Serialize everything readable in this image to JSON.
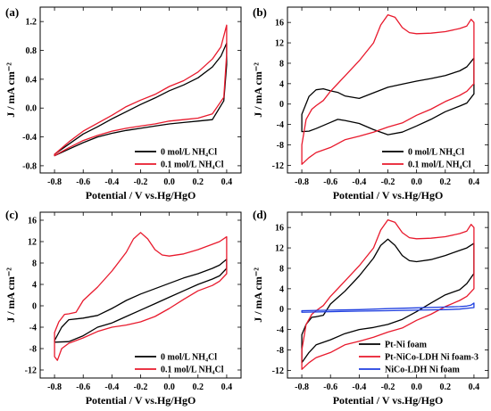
{
  "colors": {
    "black": "#000000",
    "red": "#e8192c",
    "blue": "#1f3fe0"
  },
  "chart_data": [
    {
      "panel": "(a)",
      "type": "line",
      "xlabel": "Potential / V vs.Hg/HgO",
      "ylabel": "J / mA cm⁻²",
      "xlim": [
        -0.9,
        0.5
      ],
      "ylim": [
        -0.9,
        1.4
      ],
      "xticks": [
        "-0.8",
        "-0.6",
        "-0.4",
        "-0.2",
        "0.0",
        "0.2",
        "0.4"
      ],
      "yticks": [
        "-0.8",
        "-0.4",
        "0.0",
        "0.4",
        "0.8",
        "1.2"
      ],
      "legend_position": "bottom-right",
      "series": [
        {
          "name": "0 mol/L NH₄Cl",
          "color": "black",
          "x": [
            -0.8,
            -0.7,
            -0.6,
            -0.5,
            -0.4,
            -0.3,
            -0.2,
            -0.1,
            0.0,
            0.1,
            0.2,
            0.3,
            0.36,
            0.4,
            0.4,
            0.38,
            0.3,
            0.2,
            0.1,
            0.0,
            -0.1,
            -0.2,
            -0.3,
            -0.4,
            -0.5,
            -0.6,
            -0.7,
            -0.8
          ],
          "y": [
            -0.64,
            -0.5,
            -0.36,
            -0.26,
            -0.15,
            -0.05,
            0.05,
            0.14,
            0.24,
            0.32,
            0.42,
            0.57,
            0.72,
            0.9,
            0.6,
            0.1,
            -0.16,
            -0.18,
            -0.2,
            -0.22,
            -0.25,
            -0.28,
            -0.31,
            -0.35,
            -0.4,
            -0.48,
            -0.57,
            -0.66
          ]
        },
        {
          "name": "0.1 mol/L NH₄Cl",
          "color": "red",
          "x": [
            -0.8,
            -0.7,
            -0.6,
            -0.5,
            -0.4,
            -0.3,
            -0.2,
            -0.1,
            0.0,
            0.1,
            0.2,
            0.3,
            0.36,
            0.4,
            0.4,
            0.38,
            0.3,
            0.2,
            0.1,
            0.0,
            -0.1,
            -0.2,
            -0.3,
            -0.4,
            -0.5,
            -0.6,
            -0.7,
            -0.8
          ],
          "y": [
            -0.64,
            -0.47,
            -0.32,
            -0.21,
            -0.1,
            0.02,
            0.11,
            0.19,
            0.3,
            0.38,
            0.5,
            0.68,
            0.85,
            1.15,
            0.75,
            0.15,
            -0.08,
            -0.14,
            -0.16,
            -0.18,
            -0.22,
            -0.25,
            -0.28,
            -0.32,
            -0.38,
            -0.45,
            -0.55,
            -0.66
          ]
        }
      ]
    },
    {
      "panel": "(b)",
      "type": "line",
      "xlabel": "Potential / V vs.Hg/HgO",
      "ylabel": "J / mA cm⁻²",
      "xlim": [
        -0.9,
        0.5
      ],
      "ylim": [
        -13.5,
        19
      ],
      "xticks": [
        "-0.8",
        "-0.6",
        "-0.4",
        "-0.2",
        "0.0",
        "0.2",
        "0.4"
      ],
      "yticks": [
        "-12",
        "-8",
        "-4",
        "0",
        "4",
        "8",
        "12",
        "16"
      ],
      "legend_position": "bottom-right",
      "series": [
        {
          "name": "0 mol/L NH₄Cl",
          "color": "black",
          "x": [
            -0.8,
            -0.75,
            -0.7,
            -0.65,
            -0.6,
            -0.55,
            -0.5,
            -0.4,
            -0.3,
            -0.2,
            -0.1,
            0.0,
            0.1,
            0.2,
            0.3,
            0.35,
            0.4,
            0.4,
            0.35,
            0.3,
            0.2,
            0.1,
            0.0,
            -0.1,
            -0.2,
            -0.3,
            -0.4,
            -0.5,
            -0.55,
            -0.6,
            -0.7,
            -0.75,
            -0.8
          ],
          "y": [
            -2.0,
            1.5,
            2.8,
            3.0,
            2.6,
            2.3,
            1.6,
            1.1,
            2.2,
            3.3,
            3.9,
            4.5,
            5.0,
            5.6,
            6.5,
            7.3,
            9.0,
            2.0,
            0.2,
            -0.4,
            -1.5,
            -3.0,
            -4.3,
            -5.5,
            -6.0,
            -5.0,
            -3.8,
            -3.2,
            -3.0,
            -3.6,
            -4.8,
            -5.3,
            -5.4
          ]
        },
        {
          "name": "0.1 mol/L NH₄Cl",
          "color": "red",
          "x": [
            -0.8,
            -0.77,
            -0.73,
            -0.7,
            -0.65,
            -0.6,
            -0.5,
            -0.4,
            -0.3,
            -0.25,
            -0.2,
            -0.15,
            -0.1,
            -0.05,
            0.0,
            0.1,
            0.2,
            0.3,
            0.35,
            0.38,
            0.4,
            0.4,
            0.35,
            0.3,
            0.2,
            0.1,
            0.0,
            -0.1,
            -0.2,
            -0.3,
            -0.4,
            -0.5,
            -0.6,
            -0.7,
            -0.75,
            -0.8
          ],
          "y": [
            -8.0,
            -3.0,
            -1.0,
            -0.3,
            0.7,
            2.5,
            5.5,
            8.5,
            12.0,
            15.5,
            17.5,
            17.0,
            15.0,
            14.0,
            13.8,
            13.9,
            14.2,
            14.8,
            15.3,
            16.6,
            16.0,
            4.0,
            2.5,
            1.7,
            0.5,
            -1.0,
            -2.2,
            -3.7,
            -4.5,
            -5.5,
            -6.3,
            -7.0,
            -8.5,
            -9.5,
            -10.5,
            -11.8
          ]
        }
      ]
    },
    {
      "panel": "(c)",
      "type": "line",
      "xlabel": "Potential / V vs.Hg/HgO",
      "ylabel": "J / mA cm⁻²",
      "xlim": [
        -0.9,
        0.5
      ],
      "ylim": [
        -13.5,
        17.5
      ],
      "xticks": [
        "-0.8",
        "-0.6",
        "-0.4",
        "-0.2",
        "0.0",
        "0.2",
        "0.4"
      ],
      "yticks": [
        "-12",
        "-8",
        "-4",
        "0",
        "4",
        "8",
        "12",
        "16"
      ],
      "legend_position": "bottom-right",
      "series": [
        {
          "name": "0 mol/L NH₄Cl",
          "color": "black",
          "x": [
            -0.8,
            -0.75,
            -0.7,
            -0.6,
            -0.5,
            -0.4,
            -0.3,
            -0.2,
            -0.1,
            0.0,
            0.1,
            0.2,
            0.3,
            0.35,
            0.4,
            0.4,
            0.35,
            0.3,
            0.2,
            0.1,
            0.0,
            -0.1,
            -0.2,
            -0.3,
            -0.4,
            -0.5,
            -0.6,
            -0.7,
            -0.8
          ],
          "y": [
            -6.5,
            -4.0,
            -2.6,
            -2.3,
            -1.8,
            -0.5,
            1.0,
            2.2,
            3.2,
            4.2,
            5.2,
            6.0,
            7.0,
            7.6,
            8.7,
            7.0,
            5.6,
            5.0,
            4.0,
            2.8,
            1.6,
            0.4,
            -0.8,
            -2.0,
            -3.2,
            -4.0,
            -5.6,
            -6.7,
            -6.8
          ]
        },
        {
          "name": "0.1 mol/L NH₄Cl",
          "color": "red",
          "x": [
            -0.8,
            -0.77,
            -0.73,
            -0.7,
            -0.65,
            -0.6,
            -0.5,
            -0.4,
            -0.3,
            -0.25,
            -0.2,
            -0.15,
            -0.1,
            -0.05,
            0.0,
            0.1,
            0.2,
            0.3,
            0.35,
            0.4,
            0.4,
            0.35,
            0.3,
            0.2,
            0.1,
            0.0,
            -0.1,
            -0.2,
            -0.3,
            -0.4,
            -0.5,
            -0.6,
            -0.7,
            -0.75,
            -0.78,
            -0.8
          ],
          "y": [
            -5.0,
            -3.0,
            -1.6,
            -1.5,
            -1.2,
            1.0,
            3.5,
            6.5,
            10.0,
            12.5,
            13.7,
            12.5,
            10.5,
            9.5,
            9.3,
            9.7,
            10.5,
            11.5,
            12.0,
            12.9,
            6.0,
            4.6,
            3.8,
            2.8,
            1.2,
            -0.5,
            -2.0,
            -3.0,
            -3.6,
            -4.0,
            -4.8,
            -6.0,
            -7.0,
            -8.0,
            -10.2,
            -9.5
          ]
        }
      ]
    },
    {
      "panel": "(d)",
      "type": "line",
      "xlabel": "Potential / V vs.Hg/HgO",
      "ylabel": "J / mA cm⁻²",
      "xlim": [
        -0.9,
        0.5
      ],
      "ylim": [
        -13.5,
        19
      ],
      "xticks": [
        "-0.8",
        "-0.6",
        "-0.4",
        "-0.2",
        "0.0",
        "0.2",
        "0.4"
      ],
      "yticks": [
        "-12",
        "-8",
        "-4",
        "0",
        "4",
        "8",
        "12",
        "16"
      ],
      "legend_position": "bottom-right",
      "series": [
        {
          "name": "Pt-Ni foam",
          "color": "black",
          "x": [
            -0.8,
            -0.77,
            -0.73,
            -0.7,
            -0.65,
            -0.6,
            -0.5,
            -0.4,
            -0.3,
            -0.25,
            -0.2,
            -0.15,
            -0.1,
            -0.05,
            0.0,
            0.1,
            0.2,
            0.3,
            0.35,
            0.4,
            0.4,
            0.35,
            0.3,
            0.2,
            0.1,
            0.0,
            -0.1,
            -0.2,
            -0.3,
            -0.4,
            -0.5,
            -0.6,
            -0.7,
            -0.75,
            -0.8
          ],
          "y": [
            -5.0,
            -3.0,
            -1.6,
            -1.5,
            -1.2,
            1.0,
            3.5,
            6.5,
            10.0,
            12.5,
            13.7,
            12.5,
            10.5,
            9.5,
            9.3,
            9.7,
            10.5,
            11.5,
            12.0,
            12.9,
            7.0,
            5.0,
            3.8,
            2.8,
            1.2,
            -0.5,
            -2.0,
            -3.0,
            -3.6,
            -4.0,
            -4.8,
            -6.0,
            -7.0,
            -8.5,
            -10.5
          ]
        },
        {
          "name": "Pt-NiCo-LDH Ni foam-3",
          "color": "red",
          "x": [
            -0.8,
            -0.77,
            -0.73,
            -0.7,
            -0.65,
            -0.6,
            -0.5,
            -0.4,
            -0.3,
            -0.25,
            -0.2,
            -0.15,
            -0.1,
            -0.05,
            0.0,
            0.1,
            0.2,
            0.3,
            0.35,
            0.38,
            0.4,
            0.4,
            0.35,
            0.3,
            0.2,
            0.1,
            0.0,
            -0.1,
            -0.2,
            -0.3,
            -0.4,
            -0.5,
            -0.6,
            -0.7,
            -0.75,
            -0.8
          ],
          "y": [
            -8.0,
            -3.0,
            -1.0,
            -0.3,
            0.7,
            2.5,
            5.5,
            8.5,
            12.0,
            15.5,
            17.5,
            17.0,
            15.0,
            14.0,
            13.8,
            13.9,
            14.2,
            14.8,
            15.3,
            16.6,
            16.0,
            4.0,
            2.5,
            1.7,
            0.5,
            -1.0,
            -2.2,
            -3.7,
            -4.5,
            -5.5,
            -6.3,
            -7.0,
            -8.5,
            -9.5,
            -10.5,
            -11.8
          ]
        },
        {
          "name": "NiCo-LDH Ni foam",
          "color": "blue",
          "x": [
            -0.8,
            -0.6,
            -0.4,
            -0.2,
            0.0,
            0.2,
            0.3,
            0.35,
            0.38,
            0.4,
            0.4,
            0.3,
            0.2,
            0.0,
            -0.2,
            -0.4,
            -0.6,
            -0.8
          ],
          "y": [
            -0.3,
            -0.2,
            -0.1,
            0.1,
            0.25,
            0.4,
            0.5,
            0.6,
            0.8,
            1.2,
            0.3,
            0.0,
            -0.1,
            -0.2,
            -0.3,
            -0.4,
            -0.5,
            -0.6
          ]
        }
      ]
    }
  ]
}
